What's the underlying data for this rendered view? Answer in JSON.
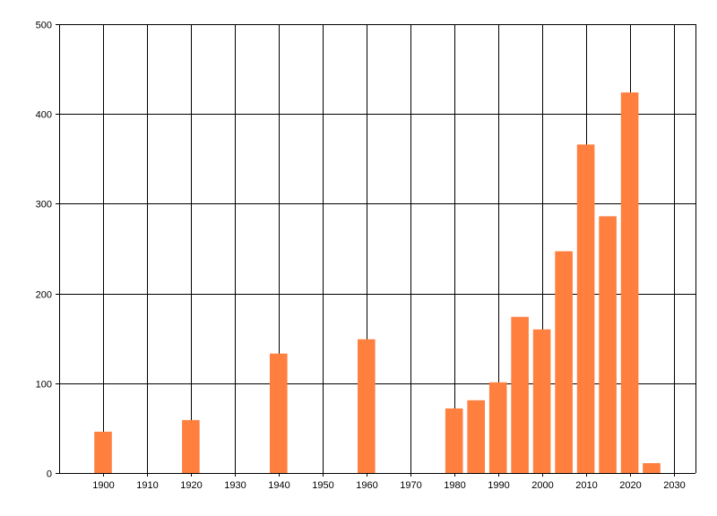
{
  "chart_data": {
    "type": "bar",
    "title": "",
    "xlabel": "",
    "ylabel": "",
    "x": [
      1900,
      1920,
      1940,
      1960,
      1980,
      1985,
      1990,
      1995,
      2000,
      2005,
      2010,
      2015,
      2020,
      2025
    ],
    "values": [
      46,
      59,
      133,
      149,
      72,
      81,
      101,
      174,
      160,
      247,
      366,
      286,
      424,
      11
    ],
    "xlim": [
      1890,
      2035
    ],
    "ylim": [
      0,
      500
    ],
    "bar_width": 4,
    "x_ticks": [
      1900,
      1910,
      1920,
      1930,
      1940,
      1950,
      1960,
      1970,
      1980,
      1990,
      2000,
      2010,
      2020,
      2030
    ],
    "y_ticks": [
      0,
      100,
      200,
      300,
      400,
      500
    ],
    "grid": true,
    "bar_color": "#ff7f3f",
    "grid_color": "#000000"
  }
}
